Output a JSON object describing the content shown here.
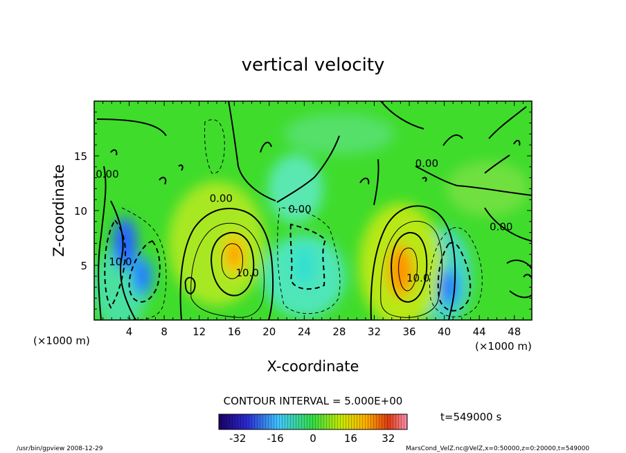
{
  "chart_data": {
    "type": "heatmap",
    "title": "vertical velocity",
    "xlabel": "X-coordinate",
    "ylabel": "Z-coordinate",
    "x_unit_label": "(×1000 m)",
    "y_unit_label": "(×1000 m)",
    "xlim": [
      0,
      50
    ],
    "ylim": [
      0,
      20
    ],
    "x_ticks": [
      "4",
      "8",
      "12",
      "16",
      "20",
      "24",
      "28",
      "32",
      "36",
      "40",
      "44",
      "48"
    ],
    "y_ticks": [
      "5",
      "10",
      "15"
    ],
    "contour_interval_label": "CONTOUR INTERVAL = 5.000E+00",
    "colorbar": {
      "range": [
        -40,
        40
      ],
      "ticks": [
        "-32",
        "-16",
        "0",
        "16",
        "32"
      ]
    },
    "features": [
      {
        "kind": "updraft",
        "x": 16,
        "z": 6,
        "value": 20
      },
      {
        "kind": "updraft",
        "x": 35,
        "z": 4.5,
        "value": 28
      },
      {
        "kind": "downdraft",
        "x": 3.5,
        "z": 7,
        "value": -28
      },
      {
        "kind": "downdraft",
        "x": 5.5,
        "z": 4,
        "value": -24
      },
      {
        "kind": "downdraft",
        "x": 24,
        "z": 5,
        "value": -14
      },
      {
        "kind": "downdraft",
        "x": 40.5,
        "z": 3,
        "value": -22
      }
    ],
    "contour_labels": [
      {
        "text": "0.00",
        "x": 14.5,
        "z": 10.8
      },
      {
        "text": "0.00",
        "x": 23.5,
        "z": 9.8
      },
      {
        "text": "0.00",
        "x": 38,
        "z": 14
      },
      {
        "text": "0.00",
        "x": 46.5,
        "z": 8.2
      },
      {
        "text": "0.00",
        "x": 1.5,
        "z": 13
      },
      {
        "text": "10.0",
        "x": 17.5,
        "z": 4
      },
      {
        "text": "10.0",
        "x": 37,
        "z": 3.5
      },
      {
        "text": "10.0",
        "x": 3,
        "z": 5
      }
    ]
  },
  "run_info": "t=549000 s",
  "footer_left": "/usr/bin/gpview   2008-12-29",
  "footer_right": "MarsCond_VelZ.nc@VelZ,x=0:50000,z=0:20000,t=549000"
}
